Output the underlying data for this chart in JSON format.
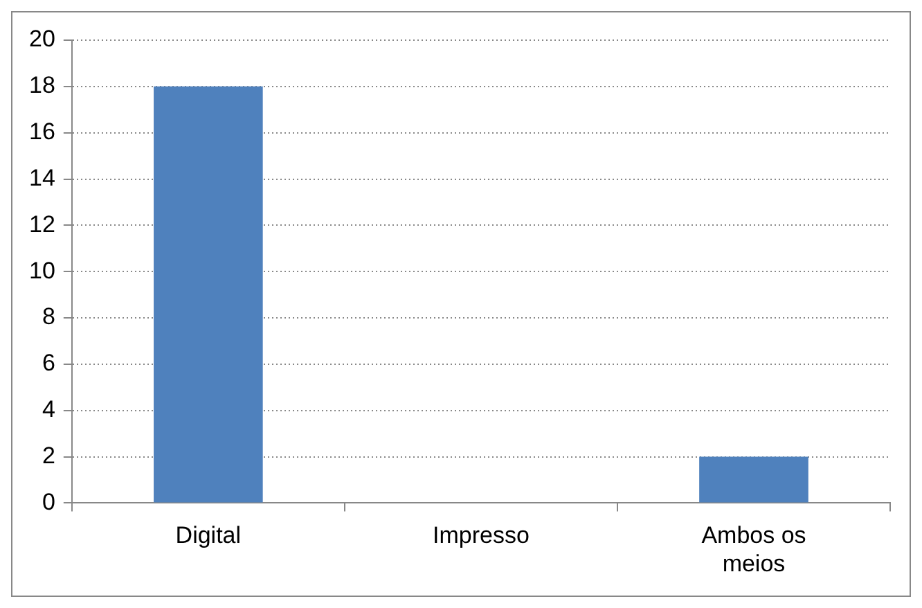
{
  "chart_data": {
    "type": "bar",
    "categories": [
      "Digital",
      "Impresso",
      "Ambos os meios"
    ],
    "values": [
      18,
      0,
      2
    ],
    "color": "#4f81bd",
    "ylim": [
      0,
      20
    ],
    "yticks": [
      0,
      2,
      4,
      6,
      8,
      10,
      12,
      14,
      16,
      18,
      20
    ],
    "grid": "y",
    "legend": false
  }
}
